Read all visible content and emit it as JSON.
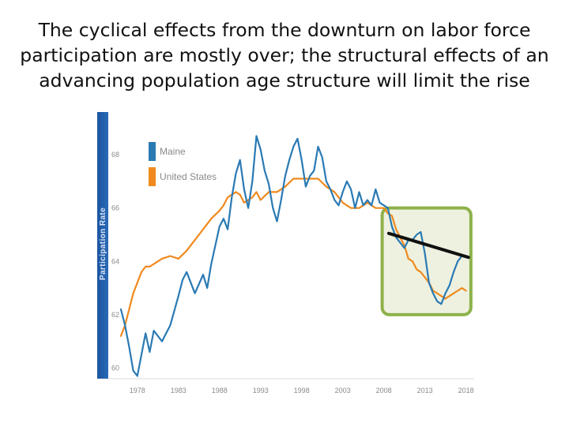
{
  "title": {
    "line1": "The cyclical effects from the downturn on labor force",
    "line2": "participation are mostly over; the structural effects of an",
    "line3": "advancing population age structure will limit the rise"
  },
  "chart_data": {
    "type": "line",
    "ylabel": "Participation Rate",
    "xlabel": "",
    "yticks": [
      "60",
      "62",
      "64",
      "66",
      "68"
    ],
    "xticks": [
      "1978",
      "1983",
      "1988",
      "1993",
      "1998",
      "2003",
      "2008",
      "2013",
      "2018"
    ],
    "xlim": [
      1976,
      2019
    ],
    "ylim": [
      59.6,
      69.6
    ],
    "grid": false,
    "legend": {
      "placement": "top-left",
      "entries": [
        {
          "name": "Maine",
          "color": "#2a7ab4"
        },
        {
          "name": "United States",
          "color": "#ef8a1e"
        }
      ]
    },
    "series": [
      {
        "name": "Maine",
        "color": "#2a7ab4",
        "x": [
          1976.0,
          1976.5,
          1977.0,
          1977.5,
          1978.0,
          1978.5,
          1979.0,
          1979.5,
          1980.0,
          1981.0,
          1982.0,
          1983.0,
          1983.5,
          1984.0,
          1985.0,
          1986.0,
          1986.5,
          1987.0,
          1988.0,
          1988.5,
          1989.0,
          1989.5,
          1990.0,
          1990.5,
          1991.0,
          1991.5,
          1992.0,
          1992.5,
          1993.0,
          1993.5,
          1994.0,
          1994.5,
          1995.0,
          1995.5,
          1996.0,
          1996.5,
          1997.0,
          1997.5,
          1998.0,
          1998.5,
          1999.0,
          1999.5,
          2000.0,
          2000.5,
          2001.0,
          2001.5,
          2002.0,
          2002.5,
          2003.0,
          2003.5,
          2004.0,
          2004.5,
          2005.0,
          2005.5,
          2006.0,
          2006.5,
          2007.0,
          2007.5,
          2008.0,
          2008.5,
          2009.0,
          2009.5,
          2010.0,
          2010.5,
          2011.0,
          2011.5,
          2012.0,
          2012.5,
          2013.0,
          2013.5,
          2014.0,
          2014.5,
          2015.0,
          2015.5,
          2016.0,
          2016.5,
          2017.0,
          2017.5,
          2018.0
        ],
        "values": [
          62.2,
          61.6,
          60.8,
          59.9,
          59.7,
          60.5,
          61.3,
          60.6,
          61.4,
          61.0,
          61.6,
          62.7,
          63.3,
          63.6,
          62.8,
          63.5,
          63.0,
          63.9,
          65.3,
          65.6,
          65.2,
          66.4,
          67.3,
          67.8,
          66.7,
          66.0,
          67.0,
          68.7,
          68.2,
          67.4,
          66.9,
          66.0,
          65.5,
          66.3,
          67.2,
          67.8,
          68.3,
          68.6,
          67.8,
          66.8,
          67.2,
          67.4,
          68.3,
          67.9,
          67.0,
          66.7,
          66.3,
          66.1,
          66.6,
          67.0,
          66.7,
          66.0,
          66.6,
          66.1,
          66.3,
          66.1,
          66.7,
          66.2,
          66.1,
          66.0,
          65.3,
          64.9,
          64.7,
          64.5,
          64.8,
          64.8,
          65.0,
          65.1,
          64.3,
          63.2,
          62.8,
          62.5,
          62.4,
          62.8,
          63.1,
          63.6,
          64.0,
          64.2,
          64.2
        ]
      },
      {
        "name": "United States",
        "color": "#ef8a1e",
        "x": [
          1976.0,
          1976.5,
          1977.0,
          1977.5,
          1978.0,
          1978.5,
          1979.0,
          1979.5,
          1980.0,
          1981.0,
          1982.0,
          1983.0,
          1984.0,
          1985.0,
          1986.0,
          1987.0,
          1988.0,
          1988.5,
          1989.0,
          1989.5,
          1990.0,
          1990.5,
          1991.0,
          1992.0,
          1992.5,
          1993.0,
          1994.0,
          1995.0,
          1996.0,
          1997.0,
          1998.0,
          1999.0,
          2000.0,
          2001.0,
          2002.0,
          2003.0,
          2004.0,
          2005.0,
          2006.0,
          2007.0,
          2008.0,
          2008.5,
          2009.0,
          2009.5,
          2010.0,
          2010.5,
          2011.0,
          2011.5,
          2012.0,
          2012.5,
          2013.0,
          2013.5,
          2014.0,
          2014.5,
          2015.0,
          2015.5,
          2016.0,
          2016.5,
          2017.0,
          2017.5,
          2018.0
        ],
        "values": [
          61.2,
          61.6,
          62.2,
          62.8,
          63.2,
          63.6,
          63.8,
          63.8,
          63.9,
          64.1,
          64.2,
          64.1,
          64.4,
          64.8,
          65.2,
          65.6,
          65.9,
          66.1,
          66.4,
          66.5,
          66.6,
          66.5,
          66.2,
          66.4,
          66.6,
          66.3,
          66.6,
          66.6,
          66.8,
          67.1,
          67.1,
          67.1,
          67.1,
          66.8,
          66.6,
          66.2,
          66.0,
          66.0,
          66.2,
          66.0,
          66.0,
          65.8,
          65.7,
          65.2,
          64.9,
          64.6,
          64.1,
          64.0,
          63.7,
          63.6,
          63.4,
          63.2,
          62.9,
          62.8,
          62.7,
          62.6,
          62.7,
          62.8,
          62.9,
          63.0,
          62.9
        ]
      }
    ],
    "annotations": [
      {
        "kind": "highlight-box",
        "x_range": [
          2007.8,
          2018.6
        ],
        "y_range": [
          62.0,
          66.0
        ],
        "fill": "#eef1df",
        "stroke": "#8db24a"
      },
      {
        "kind": "trend-line",
        "from": [
          2008.6,
          65.05
        ],
        "to": [
          2018.3,
          64.15
        ],
        "color": "#111111"
      }
    ]
  }
}
